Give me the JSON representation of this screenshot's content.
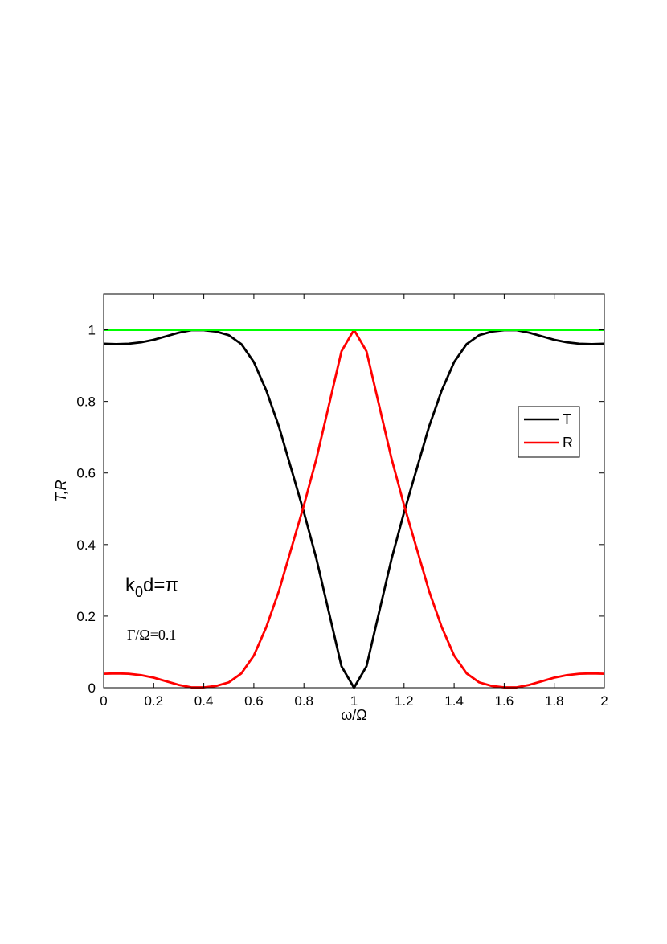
{
  "chart_data": {
    "type": "line",
    "xlabel": "ω/Ω",
    "ylabel": "T,R",
    "xlim": [
      0,
      2
    ],
    "ylim": [
      0,
      1.1
    ],
    "x_ticks": [
      "0",
      "0.2",
      "0.4",
      "0.6",
      "0.8",
      "1",
      "1.2",
      "1.4",
      "1.6",
      "1.8",
      "2"
    ],
    "y_ticks": [
      "0",
      "0.2",
      "0.4",
      "0.6",
      "0.8",
      "1"
    ],
    "legend_position": "upper-right",
    "grid": false,
    "annotations": {
      "phase": {
        "base": "k",
        "sub": "0",
        "rest": "d=π"
      },
      "gamma": "Γ/Ω=0.1"
    },
    "x": [
      0,
      0.05,
      0.1,
      0.15,
      0.2,
      0.25,
      0.3,
      0.35,
      0.4,
      0.45,
      0.5,
      0.55,
      0.6,
      0.65,
      0.7,
      0.75,
      0.8,
      0.85,
      0.9,
      0.95,
      1.0,
      1.05,
      1.1,
      1.15,
      1.2,
      1.25,
      1.3,
      1.35,
      1.4,
      1.45,
      1.5,
      1.55,
      1.6,
      1.65,
      1.7,
      1.75,
      1.8,
      1.85,
      1.9,
      1.95,
      2.0
    ],
    "series": [
      {
        "name": "T",
        "color": "#000000",
        "values": [
          0.961,
          0.96,
          0.961,
          0.965,
          0.972,
          0.982,
          0.992,
          0.999,
          0.999,
          0.995,
          0.985,
          0.96,
          0.91,
          0.83,
          0.73,
          0.61,
          0.49,
          0.36,
          0.21,
          0.06,
          0.0,
          0.06,
          0.21,
          0.36,
          0.49,
          0.61,
          0.73,
          0.83,
          0.91,
          0.96,
          0.985,
          0.995,
          0.999,
          0.999,
          0.992,
          0.982,
          0.972,
          0.965,
          0.961,
          0.96,
          0.961
        ]
      },
      {
        "name": "R",
        "values": [
          0.039,
          0.04,
          0.039,
          0.035,
          0.028,
          0.018,
          0.008,
          0.001,
          0.001,
          0.005,
          0.015,
          0.04,
          0.09,
          0.17,
          0.27,
          0.39,
          0.51,
          0.64,
          0.79,
          0.94,
          1.0,
          0.94,
          0.79,
          0.64,
          0.51,
          0.39,
          0.27,
          0.17,
          0.09,
          0.04,
          0.015,
          0.005,
          0.001,
          0.001,
          0.008,
          0.018,
          0.028,
          0.035,
          0.039,
          0.04,
          0.039
        ],
        "color": "#ff0000"
      },
      {
        "color": "#00ff00",
        "values": [
          1,
          1,
          1,
          1,
          1,
          1,
          1,
          1,
          1,
          1,
          1,
          1,
          1,
          1,
          1,
          1,
          1,
          1,
          1,
          1,
          1,
          1,
          1,
          1,
          1,
          1,
          1,
          1,
          1,
          1,
          1,
          1,
          1,
          1,
          1,
          1,
          1,
          1,
          1,
          1,
          1
        ]
      }
    ]
  }
}
